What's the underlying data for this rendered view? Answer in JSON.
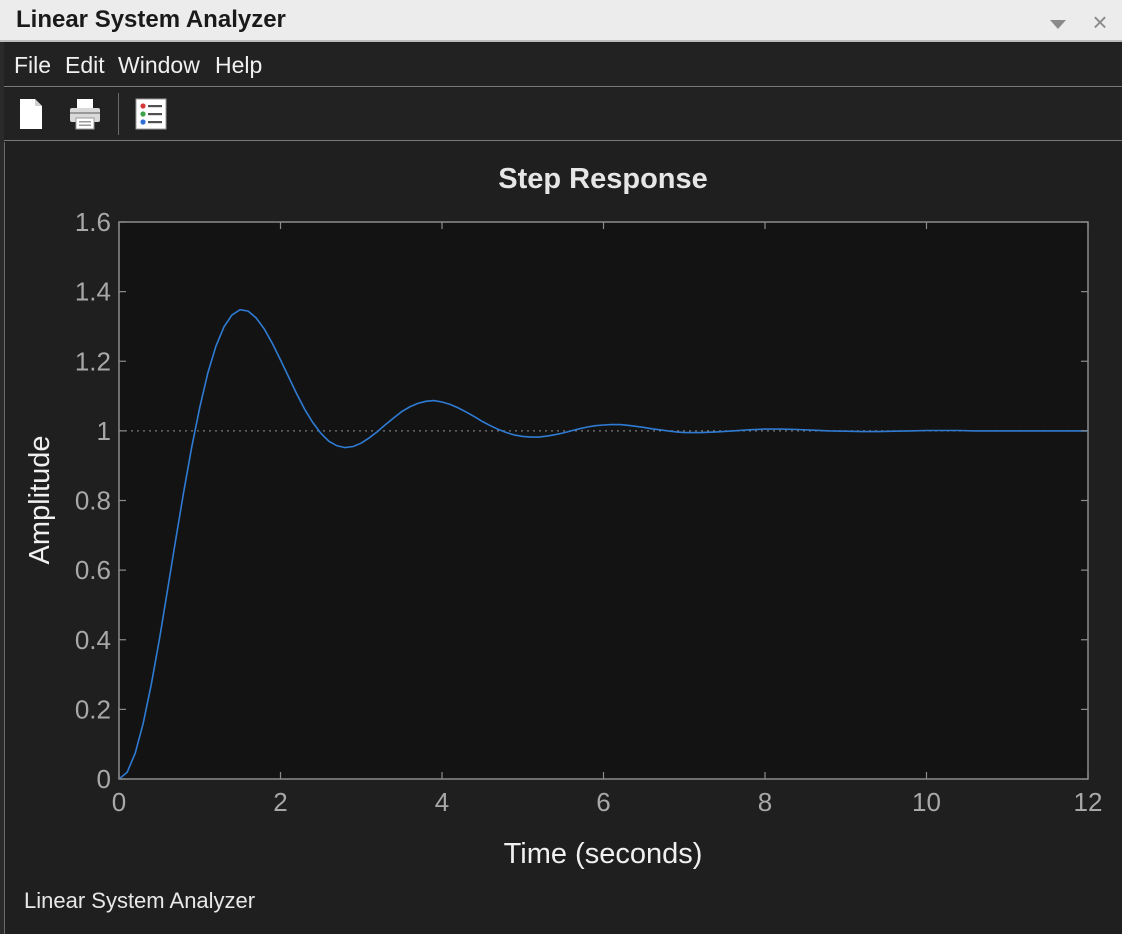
{
  "window": {
    "title": "Linear System Analyzer",
    "minimize_icon": "chevron-down-icon",
    "close_icon": "close-icon",
    "close_glyph": "×"
  },
  "menu": {
    "items": [
      {
        "label": "File"
      },
      {
        "label": "Edit"
      },
      {
        "label": "Window"
      },
      {
        "label": "Help"
      }
    ]
  },
  "toolbar": {
    "buttons": [
      {
        "icon": "new-document-icon"
      },
      {
        "icon": "print-icon"
      },
      {
        "icon": "plot-configurations-icon"
      }
    ]
  },
  "status": {
    "text": "Linear System Analyzer"
  },
  "colors": {
    "plot_background": "#131313",
    "axis": "#8c8c8c",
    "tick_label": "#a8a8a8",
    "response_line": "#2f7bd3",
    "steady_state_line": "#7a7a7a"
  },
  "chart_data": {
    "type": "line",
    "title": "Step Response",
    "xlabel": "Time (seconds)",
    "ylabel": "Amplitude",
    "xlim": [
      0,
      12
    ],
    "ylim": [
      0,
      1.6
    ],
    "xticks": [
      0,
      2,
      4,
      6,
      8,
      10,
      12
    ],
    "yticks": [
      0,
      0.2,
      0.4,
      0.6,
      0.8,
      1,
      1.2,
      1.4,
      1.6
    ],
    "ytick_labels": [
      "0",
      "0.2",
      "0.4",
      "0.6",
      "0.8",
      "1",
      "1.2",
      "1.4",
      "1.6"
    ],
    "grid": false,
    "steady_state": 1,
    "series": [
      {
        "x": [
          0,
          0.1,
          0.2,
          0.3,
          0.4,
          0.5,
          0.6,
          0.7,
          0.8,
          0.9,
          1.0,
          1.1,
          1.2,
          1.3,
          1.4,
          1.5,
          1.6,
          1.7,
          1.8,
          1.9,
          2.0,
          2.1,
          2.2,
          2.3,
          2.4,
          2.5,
          2.6,
          2.7,
          2.8,
          2.9,
          3.0,
          3.1,
          3.2,
          3.3,
          3.4,
          3.5,
          3.6,
          3.7,
          3.8,
          3.9,
          4.0,
          4.1,
          4.2,
          4.3,
          4.4,
          4.5,
          4.6,
          4.7,
          4.8,
          4.9,
          5.0,
          5.1,
          5.2,
          5.3,
          5.4,
          5.5,
          5.6,
          5.7,
          5.8,
          5.9,
          6.0,
          6.1,
          6.2,
          6.3,
          6.4,
          6.5,
          6.6,
          6.7,
          6.8,
          6.9,
          7.0,
          7.2,
          7.4,
          7.6,
          7.8,
          8.0,
          8.2,
          8.4,
          8.6,
          8.8,
          9.0,
          9.2,
          9.4,
          9.6,
          9.8,
          10.0,
          10.2,
          10.4,
          10.6,
          10.8,
          11.0,
          11.2,
          11.4,
          11.6,
          11.8,
          12.0
        ],
        "values": [
          0,
          0.019,
          0.074,
          0.16,
          0.272,
          0.401,
          0.541,
          0.684,
          0.823,
          0.953,
          1.068,
          1.166,
          1.243,
          1.299,
          1.333,
          1.348,
          1.344,
          1.324,
          1.292,
          1.251,
          1.204,
          1.155,
          1.107,
          1.062,
          1.024,
          0.993,
          0.97,
          0.957,
          0.952,
          0.955,
          0.965,
          0.98,
          0.998,
          1.018,
          1.037,
          1.055,
          1.069,
          1.079,
          1.085,
          1.087,
          1.083,
          1.076,
          1.066,
          1.054,
          1.041,
          1.027,
          1.015,
          1.004,
          0.995,
          0.988,
          0.984,
          0.982,
          0.982,
          0.985,
          0.989,
          0.994,
          1.0,
          1.006,
          1.011,
          1.015,
          1.017,
          1.018,
          1.018,
          1.016,
          1.013,
          1.01,
          1.006,
          1.003,
          1.0,
          0.997,
          0.995,
          0.995,
          0.997,
          1.0,
          1.003,
          1.005,
          1.005,
          1.004,
          1.002,
          1.0,
          0.999,
          0.998,
          0.998,
          0.999,
          1.0,
          1.001,
          1.001,
          1.001,
          1.0,
          1.0,
          1.0,
          1.0,
          1.0,
          1.0,
          1.0,
          1.0
        ]
      }
    ]
  }
}
